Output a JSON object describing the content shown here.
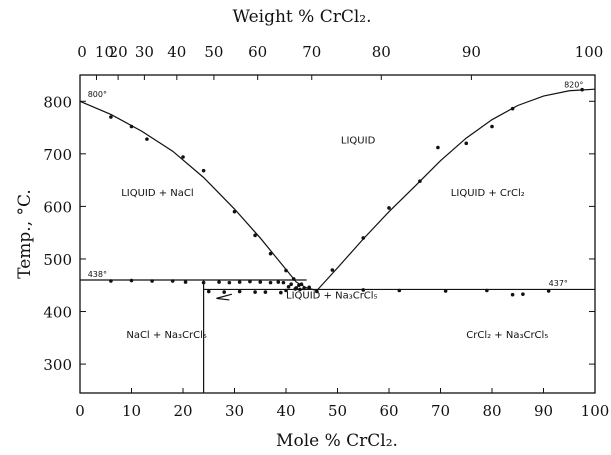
{
  "chart_data": {
    "type": "scatter",
    "title": "",
    "xlabel": "Mole % CrCl₂.",
    "x2label": "Weight % CrCl₂.",
    "ylabel": "Temp., °C.",
    "xlim": [
      0,
      100
    ],
    "ylim": [
      245,
      850
    ],
    "x_ticks": [
      0,
      10,
      20,
      30,
      40,
      50,
      60,
      70,
      80,
      90,
      100
    ],
    "y_ticks": [
      300,
      400,
      500,
      600,
      700,
      800
    ],
    "top_ticks": [
      {
        "label": "0",
        "x": 0
      },
      {
        "label": "10",
        "x": 3.2
      },
      {
        "label": "20",
        "x": 7.4
      },
      {
        "label": "30",
        "x": 12.5
      },
      {
        "label": "40",
        "x": 18.8
      },
      {
        "label": "50",
        "x": 26.0
      },
      {
        "label": "60",
        "x": 34.5
      },
      {
        "label": "70",
        "x": 45.0
      },
      {
        "label": "80",
        "x": 58.5
      },
      {
        "label": "90",
        "x": 76.0
      },
      {
        "label": "100",
        "x": 100
      }
    ],
    "regions": [
      {
        "name": "liquid",
        "label": "LIQUID",
        "x": 54,
        "y": 720
      },
      {
        "name": "liquid-nacl",
        "label": "LIQUID + NaCl",
        "x": 8,
        "y": 620
      },
      {
        "name": "liquid-crcl2",
        "label": "LIQUID + CrCl₂",
        "x": 72,
        "y": 620
      },
      {
        "name": "liquid-na3crcl5",
        "label": "LIQUID + Na₃CrCl₅",
        "x": 40,
        "y": 425
      },
      {
        "name": "nacl-na3crcl5",
        "label": "NaCl + Na₃CrCl₅",
        "x": 9,
        "y": 350
      },
      {
        "name": "crcl2-na3crcl5",
        "label": "CrCl₂ + Na₃CrCl₅",
        "x": 75,
        "y": 350
      }
    ],
    "temperature_labels": [
      {
        "label": "800°",
        "x": 1.5,
        "y": 808
      },
      {
        "label": "820°",
        "x": 94,
        "y": 826
      },
      {
        "label": "438°",
        "x": 1.5,
        "y": 466
      },
      {
        "label": "437°",
        "x": 91,
        "y": 449
      }
    ],
    "liquidus_nacl_side": [
      [
        0,
        800
      ],
      [
        6,
        775
      ],
      [
        12,
        743
      ],
      [
        18,
        705
      ],
      [
        24,
        655
      ],
      [
        30,
        595
      ],
      [
        35,
        540
      ],
      [
        39,
        492
      ],
      [
        42,
        456
      ],
      [
        44,
        445
      ],
      [
        46,
        440
      ]
    ],
    "liquidus_crcl2_side": [
      [
        46,
        440
      ],
      [
        50,
        483
      ],
      [
        55,
        538
      ],
      [
        60,
        590
      ],
      [
        65,
        638
      ],
      [
        70,
        687
      ],
      [
        75,
        730
      ],
      [
        80,
        765
      ],
      [
        85,
        792
      ],
      [
        90,
        810
      ],
      [
        95,
        820
      ],
      [
        100,
        823
      ]
    ],
    "eutectic_438": {
      "y": 460,
      "x": [
        0,
        44
      ]
    },
    "eutectic_437": {
      "y": 442,
      "x": [
        24,
        100
      ]
    },
    "compound_line": {
      "x": 24,
      "y": [
        245,
        460
      ]
    },
    "points": [
      [
        6,
        770
      ],
      [
        10,
        752
      ],
      [
        13,
        728
      ],
      [
        20,
        694
      ],
      [
        24,
        668
      ],
      [
        30,
        590
      ],
      [
        34,
        545
      ],
      [
        37,
        510
      ],
      [
        40,
        478
      ],
      [
        41.5,
        462
      ],
      [
        43,
        452
      ],
      [
        44.5,
        446
      ],
      [
        49,
        479
      ],
      [
        55,
        540
      ],
      [
        60,
        597
      ],
      [
        66,
        648
      ],
      [
        69.5,
        712
      ],
      [
        75,
        720
      ],
      [
        80,
        752
      ],
      [
        84,
        786
      ],
      [
        97.5,
        822
      ],
      [
        6,
        458
      ],
      [
        10,
        459
      ],
      [
        14,
        458
      ],
      [
        18,
        458
      ],
      [
        20.5,
        456
      ],
      [
        24,
        455
      ],
      [
        27,
        456
      ],
      [
        29,
        455
      ],
      [
        31,
        456
      ],
      [
        33,
        457
      ],
      [
        35,
        456
      ],
      [
        37,
        455
      ],
      [
        38.5,
        456
      ],
      [
        39.5,
        455
      ],
      [
        40.5,
        447
      ],
      [
        41,
        452
      ],
      [
        42,
        445
      ],
      [
        42.5,
        450
      ],
      [
        43.5,
        444
      ],
      [
        40,
        440
      ],
      [
        41.8,
        443
      ],
      [
        42.7,
        442
      ],
      [
        25,
        438
      ],
      [
        28,
        437
      ],
      [
        31,
        438
      ],
      [
        34,
        437
      ],
      [
        36,
        437
      ],
      [
        39,
        436
      ],
      [
        46,
        438
      ],
      [
        55,
        441
      ],
      [
        62,
        440
      ],
      [
        71,
        439
      ],
      [
        79,
        440
      ],
      [
        84,
        432
      ],
      [
        86,
        433
      ],
      [
        91,
        439
      ]
    ]
  }
}
